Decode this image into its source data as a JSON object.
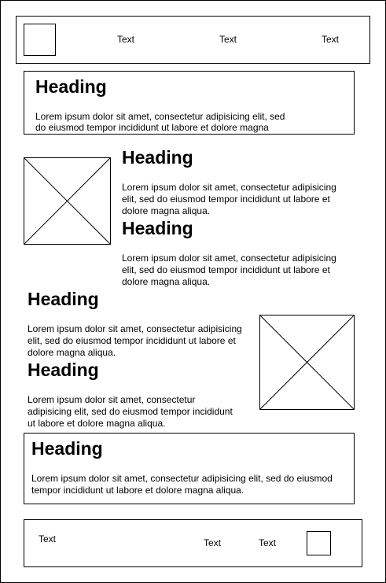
{
  "header": {
    "nav": [
      "Text",
      "Text",
      "Text"
    ],
    "logo_icon": "logo-placeholder-icon"
  },
  "hero": {
    "heading": "Heading",
    "body": "Lorem ipsum dolor sit amet, consectetur adipisicing elit, sed do eiusmod tempor incididunt ut labore et dolore magna"
  },
  "section_one": {
    "image_icon": "image-placeholder-icon",
    "blocks": [
      {
        "heading": "Heading",
        "body": "Lorem ipsum dolor sit amet, consectetur adipisicing elit, sed do eiusmod tempor incididunt ut labore et dolore magna aliqua."
      },
      {
        "heading": "Heading",
        "body": "Lorem ipsum dolor sit amet, consectetur adipisicing elit, sed do eiusmod tempor incididunt ut labore et dolore magna aliqua."
      }
    ]
  },
  "section_two": {
    "image_icon": "image-placeholder-icon",
    "blocks": [
      {
        "heading": "Heading",
        "body": "Lorem ipsum dolor sit amet, consectetur adipisicing elit, sed do eiusmod tempor incididunt ut labore et dolore magna aliqua."
      },
      {
        "heading": "Heading",
        "body": "Lorem ipsum dolor sit amet, consectetur adipisicing elit, sed do eiusmod tempor incididunt ut labore et dolore magna aliqua."
      }
    ]
  },
  "callout": {
    "heading": "Heading",
    "body": "Lorem ipsum dolor sit amet, consectetur adipisicing elit, sed do eiusmod tempor incididunt ut labore et dolore magna aliqua."
  },
  "footer": {
    "left_text": "Text",
    "links": [
      "Text",
      "Text"
    ],
    "logo_icon": "logo-placeholder-icon"
  }
}
